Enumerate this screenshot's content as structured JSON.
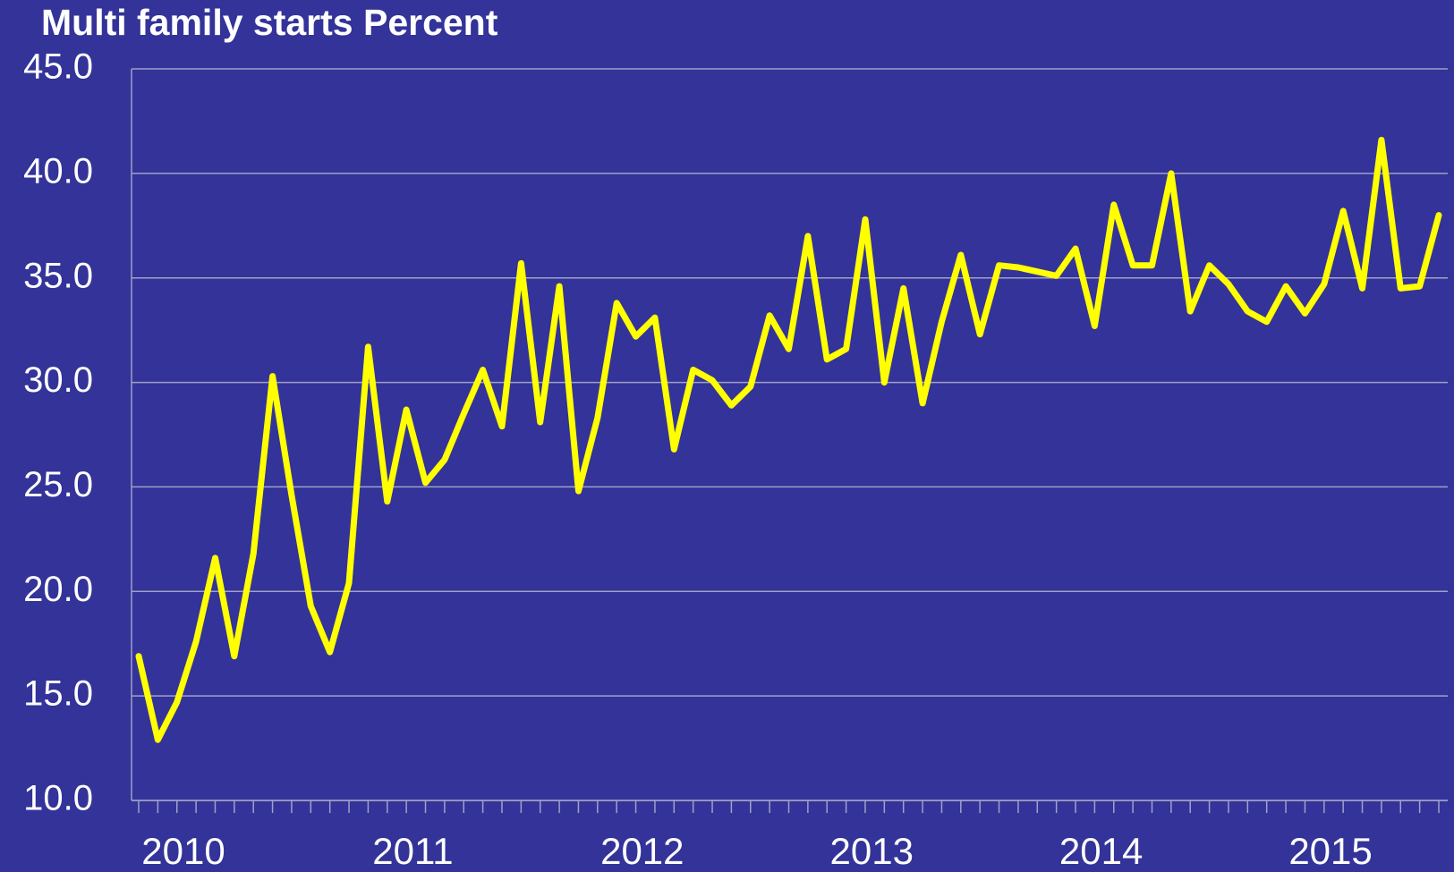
{
  "chart_data": {
    "type": "line",
    "title": "Multi family starts Percent",
    "categories": [
      "2010",
      null,
      null,
      null,
      null,
      null,
      null,
      null,
      null,
      null,
      null,
      null,
      "2011",
      null,
      null,
      null,
      null,
      null,
      null,
      null,
      null,
      null,
      null,
      null,
      "2012",
      null,
      null,
      null,
      null,
      null,
      null,
      null,
      null,
      null,
      null,
      null,
      "2013",
      null,
      null,
      null,
      null,
      null,
      null,
      null,
      null,
      null,
      null,
      null,
      "2014",
      null,
      null,
      null,
      null,
      null,
      null,
      null,
      null,
      null,
      null,
      null,
      "2015",
      null,
      null,
      null,
      null,
      null,
      null,
      null,
      null
    ],
    "series": [
      {
        "name": "Multi family starts",
        "color": "#ffff00",
        "values": [
          16.9,
          12.9,
          14.7,
          17.6,
          21.6,
          16.9,
          21.8,
          30.3,
          24.6,
          19.3,
          17.1,
          20.4,
          31.7,
          24.3,
          28.7,
          25.2,
          26.3,
          28.5,
          30.6,
          27.9,
          35.7,
          28.1,
          34.6,
          24.8,
          28.3,
          33.8,
          32.2,
          33.1,
          26.8,
          30.6,
          30.1,
          28.9,
          29.8,
          33.2,
          31.6,
          37.0,
          31.1,
          31.6,
          37.8,
          30.0,
          34.5,
          29.0,
          32.9,
          36.1,
          32.3,
          35.6,
          35.5,
          35.3,
          35.1,
          36.4,
          32.7,
          38.5,
          35.6,
          35.6,
          40.0,
          33.4,
          35.6,
          34.7,
          33.4,
          32.9,
          34.6,
          33.3,
          34.7,
          38.2,
          34.5,
          41.6,
          34.5,
          34.6,
          38.0
        ]
      }
    ],
    "ylim": [
      10,
      45
    ],
    "yticks": [
      {
        "value": 10,
        "label": "10.0"
      },
      {
        "value": 15,
        "label": "15.0"
      },
      {
        "value": 20,
        "label": "20.0"
      },
      {
        "value": 25,
        "label": "25.0"
      },
      {
        "value": 30,
        "label": "30.0"
      },
      {
        "value": 35,
        "label": "35.0"
      },
      {
        "value": 40,
        "label": "40.0"
      },
      {
        "value": 45,
        "label": "45.0"
      }
    ],
    "grid": true
  }
}
